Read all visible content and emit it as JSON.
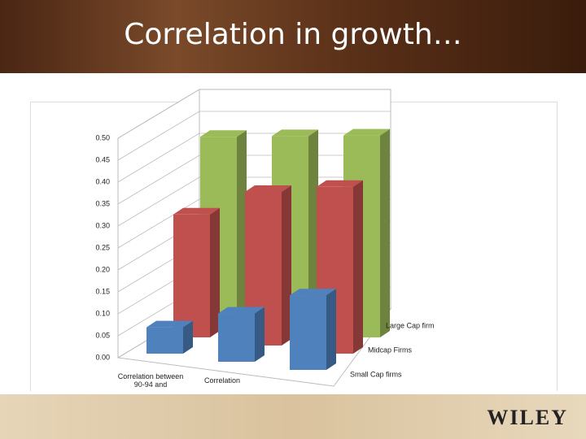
{
  "slide_title": "Correlation in growth…",
  "logo": "WILEY",
  "chart_data": {
    "type": "bar3d",
    "categories": [
      "Correlation between 90-94 and",
      "Correlation",
      null
    ],
    "series": [
      {
        "name": "Small Cap firms",
        "color": "#4f81bd",
        "values": [
          0.06,
          0.11,
          0.17
        ]
      },
      {
        "name": "Midcap Firms",
        "color": "#c0504d",
        "values": [
          0.28,
          0.35,
          0.38
        ]
      },
      {
        "name": "Large Cap firm",
        "color": "#9bbb59",
        "values": [
          0.42,
          0.44,
          0.46
        ]
      }
    ],
    "ylim": [
      0,
      0.5
    ],
    "yticks": [
      {
        "value": 0,
        "label": "0.00"
      },
      0.05,
      {
        "value": 0.1,
        "label": "0.10"
      },
      0.15,
      {
        "value": 0.2,
        "label": "0.20"
      },
      0.25,
      {
        "value": 0.3,
        "label": "0.30"
      },
      0.35,
      {
        "value": 0.4,
        "label": "0.40"
      },
      0.45,
      {
        "value": 0.5,
        "label": "0.50"
      }
    ],
    "grid": true
  }
}
